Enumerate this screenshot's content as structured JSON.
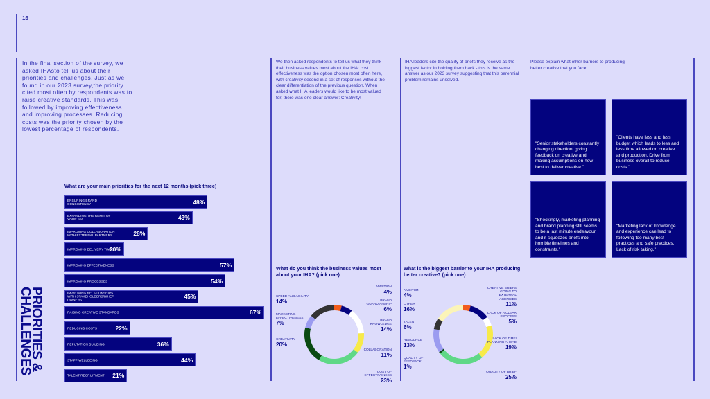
{
  "page_number": "16",
  "section_title": "PRIORITIES & CHALLENGES",
  "intro": "In the final section of the survey, we asked IHAsto tell us about their priorities and challenges. Just as we found in our 2023 survey,the priority cited most often by respondents was to raise creative standards. This was followed by improving effectiveness and improving processes. Reducing costs was the priority chosen by the lowest percentage of respondents.",
  "col2_text": "We then asked respondents to tell us what they think their business values most about the IHA: cost effectiveness was the option chosen most often here, with creativity second in a set of responses without the clear differentiation of the previous question. When asked what IHA leaders would like to be most valued for, there was one clear answer: Creativity!",
  "col3_text": "IHA leaders cite the quality of briefs they receive as the biggest factor in holding them back - this is the same answer as our 2023 survey suggesting that this perennial problem remains unsolved.",
  "col4_text": "Please explain what other barriers to producing better creative that you face:",
  "quotes": [
    "\"Senior stakeholders constantly changing direction, giving feedback on creative and making assumptions on how best to deliver creative.\"",
    "\"Clients have less and less budget which leads to less and less time allowed on creative and production. Drive from business overall to reduce costs.\"",
    "\"Shockingly, marketing planning and brand planning still seems to be a last minute endeavour and it squeezes briefs into horrible timelines and constraints.\"",
    "\"Marketing lack of knowledge and experience can lead to following too many best practices and safe practices. Lack of risk taking.\""
  ],
  "colors": {
    "bg": "#dddcfb",
    "navy": "#04037f",
    "accent_line": "#4a48c0"
  },
  "chart_data": [
    {
      "type": "bar",
      "orientation": "horizontal",
      "title": "What are your main priorities for the next 12 months (pick three)",
      "categories": [
        "Ensuring brand consistency",
        "Expanding the remit of your IHA",
        "Improving collaboration with external partners",
        "Improving delivery times",
        "Improving effectiveness",
        "Improving processes",
        "Improving relationships with stakeholders/brief owners",
        "Raising creative standards",
        "Reducing costs",
        "Reputation building",
        "Staff wellbeing",
        "Talent recruitment"
      ],
      "values": [
        48,
        43,
        28,
        20,
        57,
        54,
        45,
        67,
        22,
        36,
        44,
        21
      ],
      "unit": "%",
      "xlim": [
        0,
        67
      ]
    },
    {
      "type": "pie",
      "donut": true,
      "title": "What do you think the business values most about your IHA? (pick one)",
      "slices": [
        {
          "label": "Ambition",
          "value": 4,
          "color": "#f25c1c",
          "side": "r"
        },
        {
          "label": "Brand guardianship",
          "value": 6,
          "color": "#04037f",
          "side": "r"
        },
        {
          "label": "Brand knowledge",
          "value": 14,
          "color": "#ffffff",
          "side": "r"
        },
        {
          "label": "Collaboration",
          "value": 11,
          "color": "#f7ea4a",
          "side": "r"
        },
        {
          "label": "Cost of effectiveness",
          "value": 23,
          "color": "#5fd887",
          "side": "r"
        },
        {
          "label": "Creativity",
          "value": 20,
          "color": "#0a4a12",
          "side": "l"
        },
        {
          "label": "Marketing effectiveness",
          "value": 7,
          "color": "#9b9cf0",
          "side": "l"
        },
        {
          "label": "Speed and agility",
          "value": 14,
          "color": "#333333",
          "side": "l"
        }
      ]
    },
    {
      "type": "pie",
      "donut": true,
      "title": "What is the biggest barrier to your IHA producing better creative? (pick one)",
      "slices": [
        {
          "label": "Ambition",
          "value": 4,
          "color": "#f25c1c",
          "side": "l"
        },
        {
          "label": "Creative briefs going to external agencies",
          "value": 11,
          "color": "#04037f",
          "side": "r"
        },
        {
          "label": "Lack of a clear process",
          "value": 5,
          "color": "#ffffff",
          "side": "r"
        },
        {
          "label": "Lack of time/ planning ahead",
          "value": 19,
          "color": "#f7ea4a",
          "side": "r"
        },
        {
          "label": "Quality of brief",
          "value": 25,
          "color": "#5fd887",
          "side": "r"
        },
        {
          "label": "Quality of feedback",
          "value": 1,
          "color": "#0a4a12",
          "side": "l"
        },
        {
          "label": "Resource",
          "value": 13,
          "color": "#9b9cf0",
          "side": "l"
        },
        {
          "label": "Talent",
          "value": 6,
          "color": "#333333",
          "side": "l"
        },
        {
          "label": "Other",
          "value": 16,
          "color": "#fbf4b8",
          "side": "l"
        }
      ]
    }
  ]
}
